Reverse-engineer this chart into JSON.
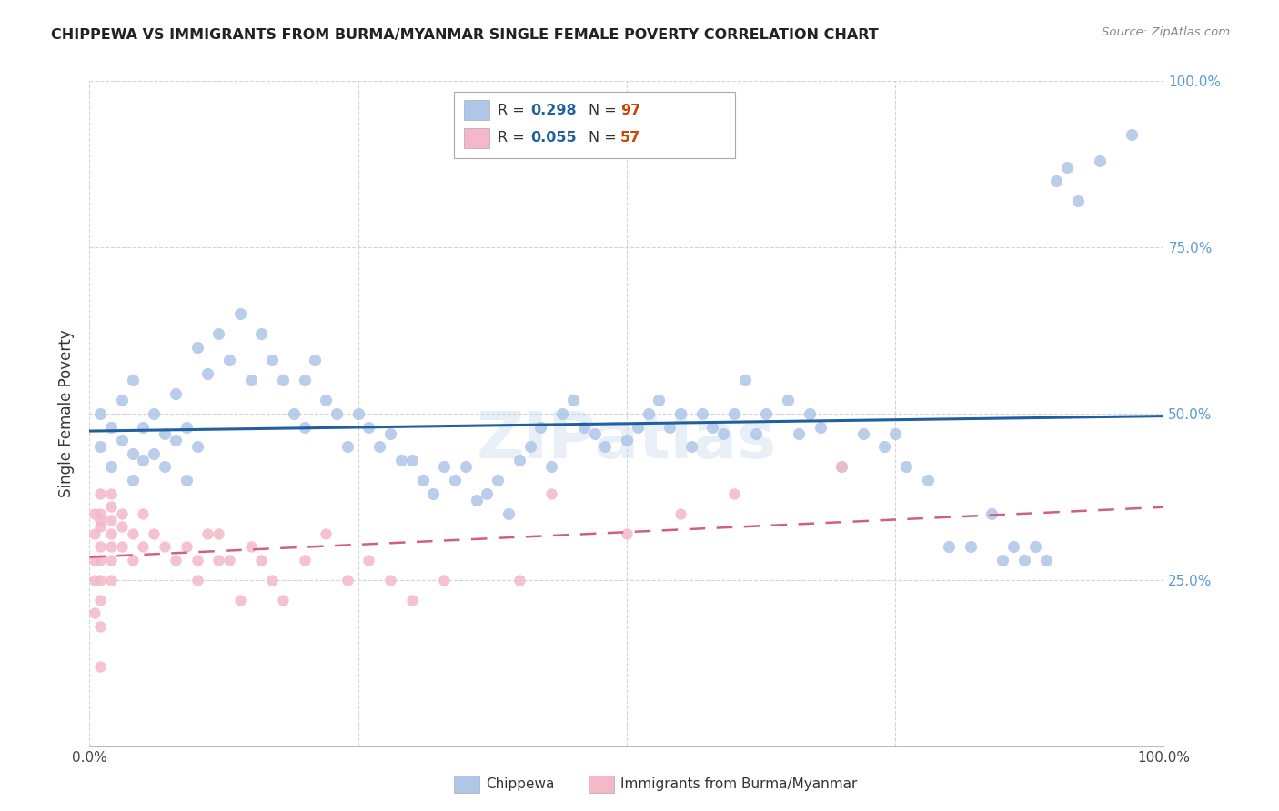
{
  "title": "CHIPPEWA VS IMMIGRANTS FROM BURMA/MYANMAR SINGLE FEMALE POVERTY CORRELATION CHART",
  "source": "Source: ZipAtlas.com",
  "ylabel": "Single Female Poverty",
  "legend_label1": "Chippewa",
  "legend_label2": "Immigrants from Burma/Myanmar",
  "R1": "0.298",
  "N1": "97",
  "R2": "0.055",
  "N2": "57",
  "color1": "#aec6e8",
  "color2": "#f4b8c8",
  "line1_color": "#2060a0",
  "line2_color": "#d06080",
  "watermark": "ZIPatlas",
  "chip_x": [
    1,
    1,
    2,
    2,
    3,
    3,
    4,
    4,
    4,
    5,
    5,
    6,
    6,
    7,
    7,
    8,
    8,
    9,
    9,
    10,
    10,
    11,
    12,
    13,
    14,
    15,
    16,
    17,
    18,
    19,
    20,
    20,
    21,
    22,
    23,
    24,
    25,
    26,
    27,
    28,
    29,
    30,
    31,
    32,
    33,
    34,
    35,
    36,
    37,
    38,
    39,
    40,
    41,
    42,
    43,
    44,
    45,
    46,
    47,
    48,
    50,
    51,
    52,
    53,
    54,
    55,
    56,
    57,
    58,
    59,
    60,
    61,
    62,
    63,
    65,
    66,
    67,
    68,
    70,
    72,
    74,
    75,
    76,
    78,
    80,
    82,
    84,
    85,
    86,
    87,
    88,
    89,
    90,
    91,
    92,
    94,
    97
  ],
  "chip_y": [
    45,
    50,
    48,
    42,
    46,
    52,
    40,
    44,
    55,
    43,
    48,
    50,
    44,
    47,
    42,
    46,
    53,
    48,
    40,
    60,
    45,
    56,
    62,
    58,
    65,
    55,
    62,
    58,
    55,
    50,
    55,
    48,
    58,
    52,
    50,
    45,
    50,
    48,
    45,
    47,
    43,
    43,
    40,
    38,
    42,
    40,
    42,
    37,
    38,
    40,
    35,
    43,
    45,
    48,
    42,
    50,
    52,
    48,
    47,
    45,
    46,
    48,
    50,
    52,
    48,
    50,
    45,
    50,
    48,
    47,
    50,
    55,
    47,
    50,
    52,
    47,
    50,
    48,
    42,
    47,
    45,
    47,
    42,
    40,
    30,
    30,
    35,
    28,
    30,
    28,
    30,
    28,
    85,
    87,
    82,
    88,
    92
  ],
  "burma_x": [
    0.5,
    0.5,
    0.5,
    0.5,
    0.5,
    1,
    1,
    1,
    1,
    1,
    1,
    1,
    1,
    1,
    1,
    2,
    2,
    2,
    2,
    2,
    2,
    2,
    3,
    3,
    3,
    4,
    4,
    5,
    5,
    6,
    7,
    8,
    9,
    10,
    10,
    11,
    12,
    12,
    13,
    14,
    15,
    16,
    17,
    18,
    20,
    22,
    24,
    26,
    28,
    30,
    33,
    40,
    43,
    50,
    55,
    60,
    70
  ],
  "burma_y": [
    35,
    32,
    28,
    25,
    20,
    38,
    35,
    34,
    33,
    30,
    28,
    25,
    22,
    18,
    12,
    38,
    36,
    34,
    32,
    30,
    28,
    25,
    35,
    33,
    30,
    32,
    28,
    30,
    35,
    32,
    30,
    28,
    30,
    28,
    25,
    32,
    28,
    32,
    28,
    22,
    30,
    28,
    25,
    22,
    28,
    32,
    25,
    28,
    25,
    22,
    25,
    25,
    38,
    32,
    35,
    38,
    42
  ]
}
